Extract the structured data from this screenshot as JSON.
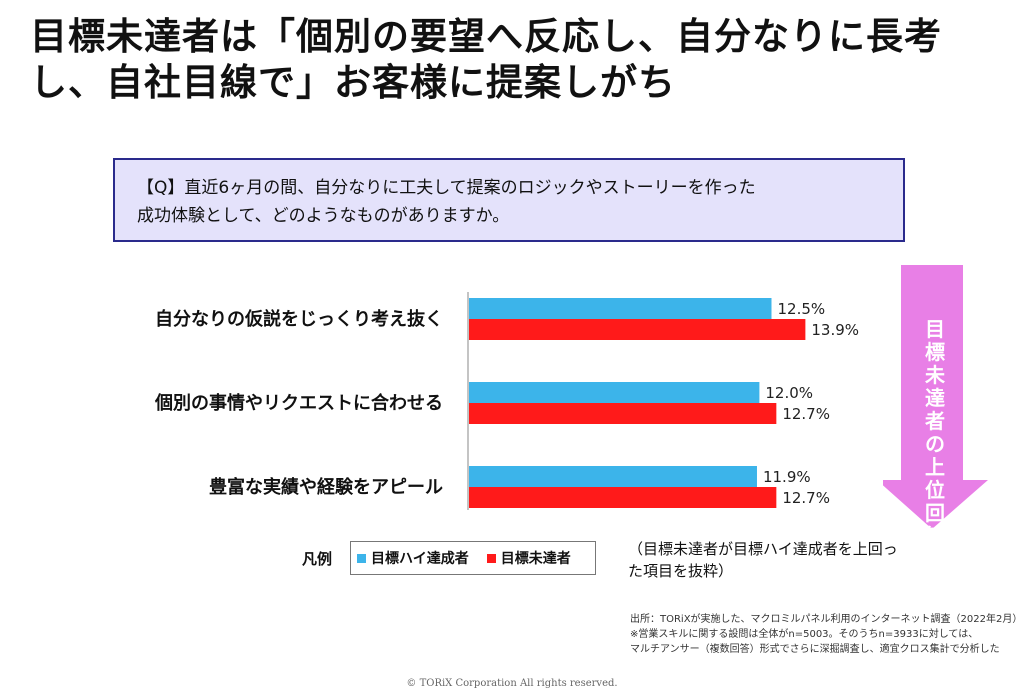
{
  "title": "目標未達者は「個別の要望へ反応し、自分なりに長考し、自社目線で」お客様に提案しがち",
  "question": {
    "line1": "【Q】直近6ヶ月の間、自分なりに工夫して提案のロジックやストーリーを作った",
    "line2": "成功体験として、どのようなものがありますか。"
  },
  "arrow": {
    "text": "目標未達者の上位回答",
    "color": "#e87fe6"
  },
  "legend": {
    "title": "凡例",
    "items": [
      {
        "label": "目標ハイ達成者",
        "color": "#3cb4ea"
      },
      {
        "label": "目標未達者",
        "color": "#ff1a1a"
      }
    ],
    "note": "（目標未達者が目標ハイ達成者を上回った項目を抜粋）"
  },
  "source": {
    "line1": "出所：TORiXが実施した、マクロミルパネル利用のインターネット調査（2022年2月）",
    "line2": "※営業スキルに関する設問は全体がn=5003。そのうちn=3933に対しては、",
    "line3": "マルチアンサー（複数回答）形式でさらに深掘調査し、適宜クロス集計で分析した"
  },
  "copyright": "© TORiX Corporation All rights reserved.",
  "chart_data": {
    "type": "bar",
    "orientation": "horizontal",
    "categories": [
      "自分なりの仮説をじっくり考え抜く",
      "個別の事情やリクエストに合わせる",
      "豊富な実績や経験をアピール"
    ],
    "series": [
      {
        "name": "目標ハイ達成者",
        "color": "#3cb4ea",
        "values": [
          12.5,
          12.0,
          11.9
        ]
      },
      {
        "name": "目標未達者",
        "color": "#ff1a1a",
        "values": [
          13.9,
          12.7,
          12.7
        ]
      }
    ],
    "value_suffix": "%",
    "xlim": [
      0,
      14
    ]
  }
}
